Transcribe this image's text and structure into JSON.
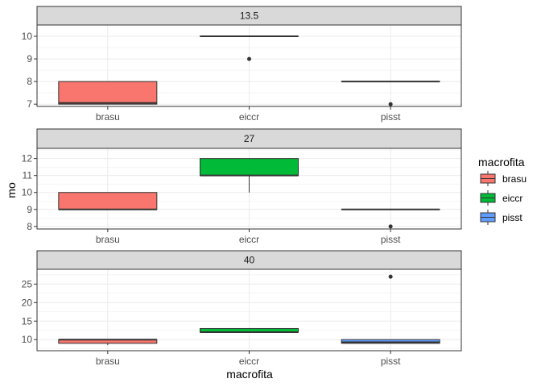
{
  "chart_data": {
    "type": "box",
    "xlabel": "macrofita",
    "ylabel": "mo",
    "categories": [
      "brasu",
      "eiccr",
      "pisst"
    ],
    "colors": {
      "brasu": "#F8766D",
      "eiccr": "#00BA38",
      "pisst": "#619CFF"
    },
    "legend": {
      "title": "macrofita",
      "placement": "right",
      "entries": [
        "brasu",
        "eiccr",
        "pisst"
      ]
    },
    "grid": true,
    "facets": [
      {
        "label": "13.5",
        "ylim": [
          6.9,
          10.5
        ],
        "yticks": [
          7,
          8,
          9,
          10
        ],
        "boxes": [
          {
            "category": "brasu",
            "min": 7,
            "q1": 7,
            "median": 7.05,
            "q3": 8,
            "max": 8,
            "outliers": []
          },
          {
            "category": "eiccr",
            "min": 10,
            "q1": 10,
            "median": 10,
            "q3": 10,
            "max": 10,
            "outliers": [
              9
            ]
          },
          {
            "category": "pisst",
            "min": 8,
            "q1": 8,
            "median": 8,
            "q3": 8,
            "max": 8,
            "outliers": [
              7
            ]
          }
        ]
      },
      {
        "label": "27",
        "ylim": [
          7.85,
          12.6
        ],
        "yticks": [
          8,
          9,
          10,
          11,
          12
        ],
        "boxes": [
          {
            "category": "brasu",
            "min": 9,
            "q1": 9,
            "median": 9,
            "q3": 10,
            "max": 10,
            "outliers": []
          },
          {
            "category": "eiccr",
            "min": 10,
            "q1": 11,
            "median": 11,
            "q3": 12,
            "max": 12,
            "outliers": []
          },
          {
            "category": "pisst",
            "min": 9,
            "q1": 9,
            "median": 9,
            "q3": 9,
            "max": 9,
            "outliers": [
              8
            ]
          }
        ]
      },
      {
        "label": "40",
        "ylim": [
          7,
          29
        ],
        "yticks": [
          10,
          15,
          20,
          25
        ],
        "boxes": [
          {
            "category": "brasu",
            "min": 8.5,
            "q1": 9,
            "median": 10,
            "q3": 10,
            "max": 10,
            "outliers": []
          },
          {
            "category": "eiccr",
            "min": 12,
            "q1": 12,
            "median": 12,
            "q3": 13,
            "max": 13,
            "outliers": []
          },
          {
            "category": "pisst",
            "min": 9,
            "q1": 9,
            "median": 9.3,
            "q3": 10,
            "max": 10,
            "outliers": [
              27
            ]
          }
        ]
      }
    ]
  }
}
